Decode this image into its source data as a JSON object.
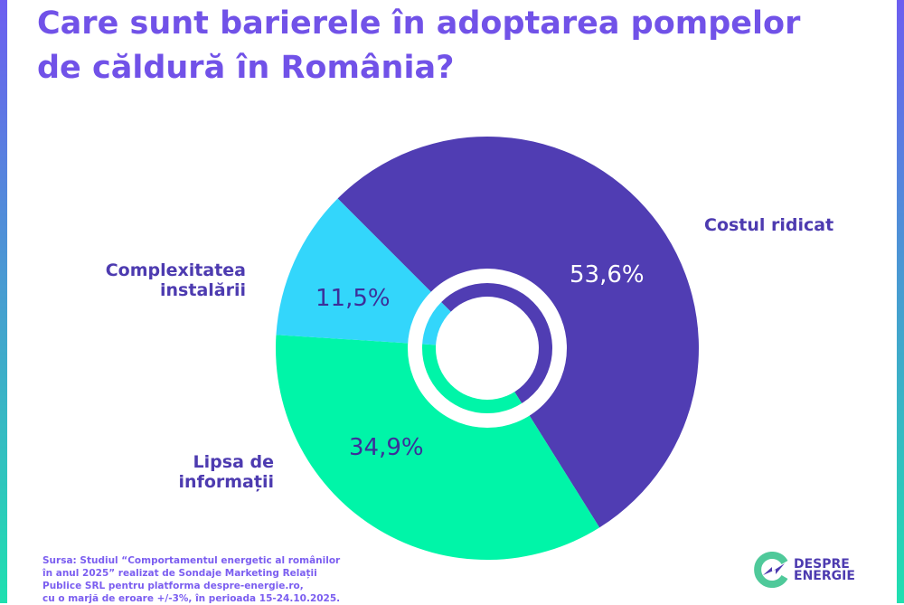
{
  "title": "Care sunt barierele în adoptarea pompelor de căldură în România?",
  "chart_data": {
    "type": "pie",
    "title": "Care sunt barierele în adoptarea pompelor de căldură în România?",
    "categories": [
      "Costul ridicat",
      "Lipsa de informații",
      "Complexitatea instalării"
    ],
    "values": [
      53.6,
      34.9,
      11.5
    ],
    "value_labels": [
      "53,6%",
      "34,9%",
      "11,5%"
    ],
    "colors": [
      "#503db3",
      "#00f5a8",
      "#33d6fb"
    ],
    "label_colors": [
      "#ffffff",
      "#3d2f99",
      "#3d2f99"
    ]
  },
  "source": [
    "Sursa: Studiul “Comportamentul energetic al românilor",
    "în anul 2025” realizat de Sondaje Marketing Relații",
    "Publice SRL pentru platforma despre-energie.ro,",
    "cu o marjă de eroare +/-3%, în perioada 15-24.10.2025."
  ],
  "logo": {
    "line1": "DESPRE",
    "line2": "ENERGIE"
  }
}
